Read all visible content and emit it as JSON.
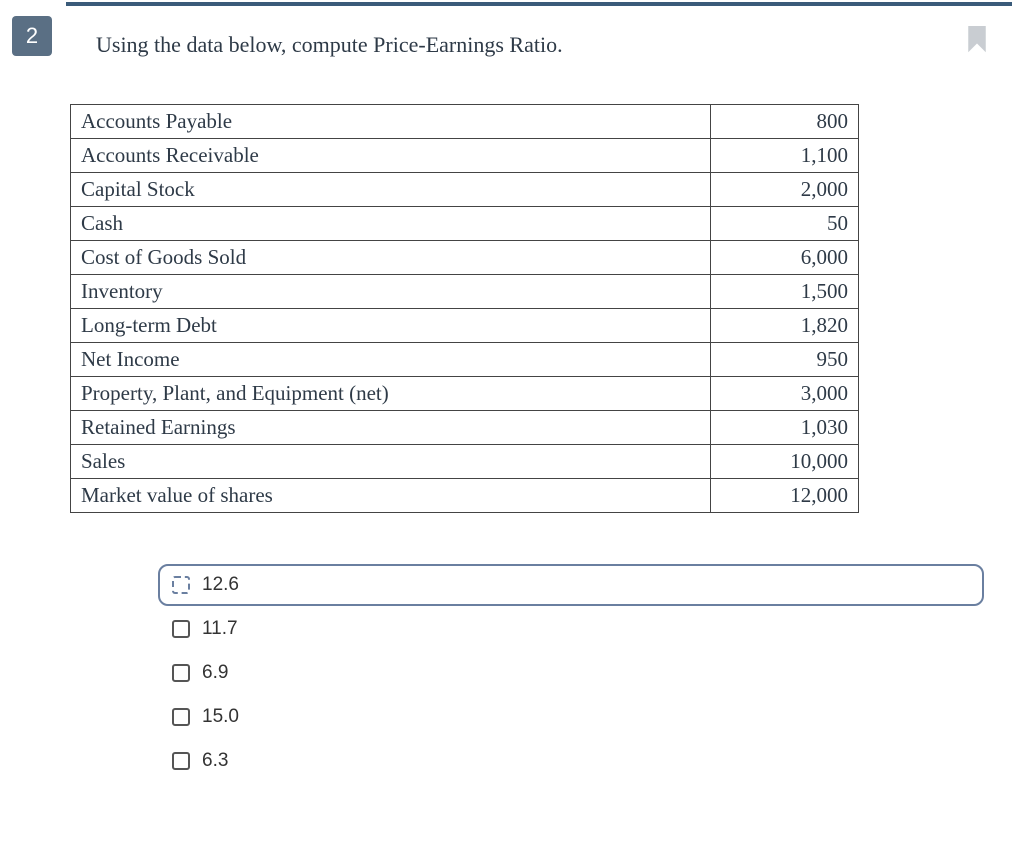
{
  "question": {
    "number": "2",
    "text": "Using the data below, compute Price-Earnings Ratio.",
    "badge_bg": "#5a6f84",
    "badge_fg": "#ffffff",
    "top_line_color": "#3a5b7a",
    "text_color": "#2e3a47"
  },
  "table": {
    "border_color": "#444444",
    "font_size": 21,
    "rows": [
      {
        "label": "Accounts Payable",
        "value": "800"
      },
      {
        "label": "Accounts Receivable",
        "value": "1,100"
      },
      {
        "label": "Capital Stock",
        "value": "2,000"
      },
      {
        "label": "Cash",
        "value": "50"
      },
      {
        "label": "Cost of Goods Sold",
        "value": "6,000"
      },
      {
        "label": "Inventory",
        "value": "1,500"
      },
      {
        "label": "Long-term Debt",
        "value": "1,820"
      },
      {
        "label": "Net Income",
        "value": "950"
      },
      {
        "label": "Property, Plant, and Equipment (net)",
        "value": "3,000"
      },
      {
        "label": "Retained Earnings",
        "value": "1,030"
      },
      {
        "label": "Sales",
        "value": "10,000"
      },
      {
        "label": "Market value of shares",
        "value": "12,000"
      }
    ],
    "label_width": 640,
    "value_width": 148
  },
  "options": {
    "font_size": 19,
    "selected_border_color": "#6a7fa0",
    "checkbox_border_color": "#555555",
    "items": [
      {
        "label": "12.6",
        "selected": true
      },
      {
        "label": "11.7",
        "selected": false
      },
      {
        "label": "6.9",
        "selected": false
      },
      {
        "label": "15.0",
        "selected": false
      },
      {
        "label": "6.3",
        "selected": false
      }
    ]
  },
  "bookmark": {
    "fill": "#c9cdd2"
  }
}
